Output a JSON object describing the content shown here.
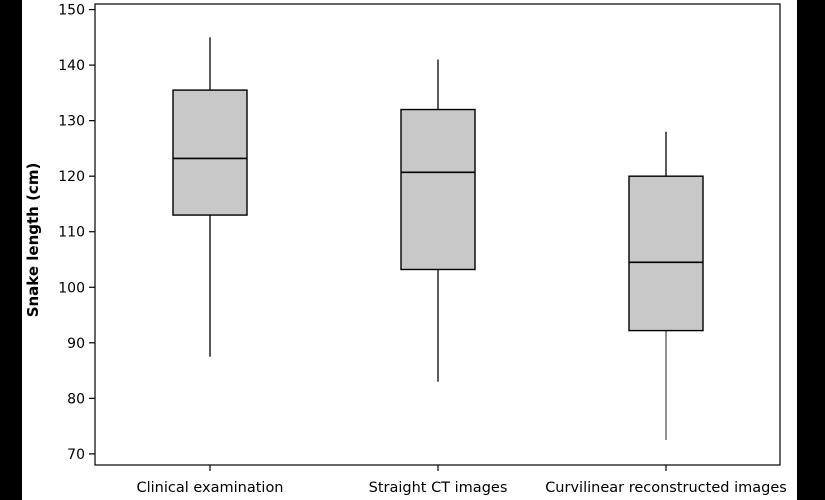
{
  "chart_data": {
    "type": "boxplot",
    "ylabel": "Snake length (cm)",
    "xlabel": "",
    "ylim": [
      68,
      151
    ],
    "yticks": [
      70,
      80,
      90,
      100,
      110,
      120,
      130,
      140,
      150
    ],
    "categories": [
      "Clinical examination",
      "Straight CT images",
      "Curvilinear reconstructed images"
    ],
    "boxes": [
      {
        "category": "Clinical examination",
        "whisker_low": 87.5,
        "q1": 113,
        "median": 123.2,
        "q3": 135.5,
        "whisker_high": 145
      },
      {
        "category": "Straight CT images",
        "whisker_low": 83,
        "q1": 103.2,
        "median": 120.7,
        "q3": 132,
        "whisker_high": 141
      },
      {
        "category": "Curvilinear reconstructed images",
        "whisker_low": 72.5,
        "q1": 92.2,
        "median": 104.5,
        "q3": 120,
        "whisker_high": 128
      }
    ],
    "box_fill": "#c8c8c8",
    "grid": false,
    "legend": "none"
  }
}
